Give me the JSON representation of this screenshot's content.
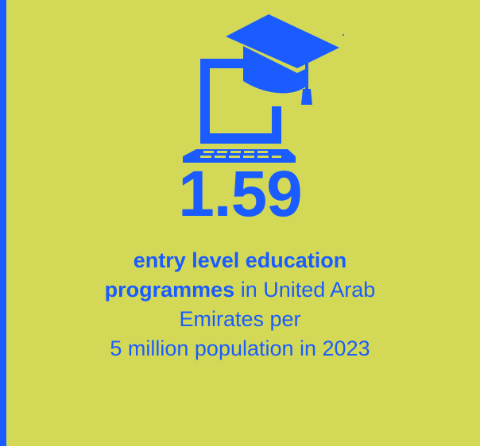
{
  "stat": {
    "value": "1.59"
  },
  "description": {
    "bold_part_1": "entry level education",
    "bold_part_2": "programmes",
    "line2_rest": " in United Arab",
    "line3": "Emirates per",
    "line4": "5 million population in 2023"
  },
  "icon": {
    "name": "laptop-graduation-cap-icon"
  },
  "colors": {
    "accent": "#1a5cff",
    "background": "#d3d957"
  }
}
